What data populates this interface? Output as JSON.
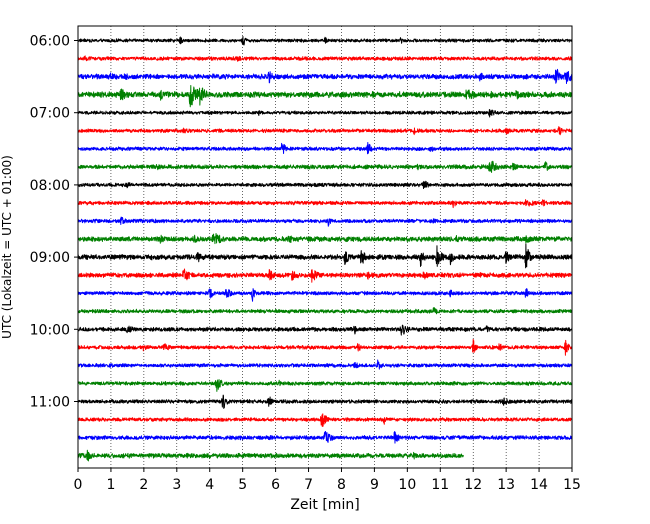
{
  "chart_data": {
    "type": "line",
    "chart_kind": "helicorder (dayplot seismogram, 15-minute rows)",
    "title": "",
    "xlabel": "Zeit  [min]",
    "ylabel": "UTC (Lokalzeit = UTC + 01:00)",
    "xlim": [
      0,
      15
    ],
    "x_ticks": [
      "0",
      "1",
      "2",
      "3",
      "4",
      "5",
      "6",
      "7",
      "8",
      "9",
      "10",
      "11",
      "12",
      "13",
      "14",
      "15"
    ],
    "y_tick_labels": [
      "06:00",
      "07:00",
      "08:00",
      "09:00",
      "10:00",
      "11:00"
    ],
    "grid": "vertical dotted lines at each minute",
    "row_color_cycle": [
      "#000000",
      "#ff0000",
      "#0000ff",
      "#008000"
    ],
    "rows_count": 24,
    "last_row_ends_minute": 11.7,
    "rows": [
      {
        "start": "06:00",
        "color": "black",
        "noise": 0.2,
        "events": [
          [
            3.1,
            0.6,
            0.1
          ],
          [
            5.0,
            0.9,
            0.08
          ],
          [
            7.5,
            0.4,
            0.1
          ],
          [
            9.8,
            0.4,
            0.1
          ]
        ]
      },
      {
        "start": "06:15",
        "color": "red",
        "noise": 0.22,
        "events": [
          [
            0.2,
            0.35,
            0.3
          ],
          [
            4.8,
            0.35,
            0.3
          ]
        ]
      },
      {
        "start": "06:30",
        "color": "blue",
        "noise": 0.3,
        "events": [
          [
            1.0,
            0.6,
            0.25
          ],
          [
            1.4,
            0.5,
            0.2
          ],
          [
            5.8,
            0.9,
            0.12
          ],
          [
            12.2,
            0.5,
            0.2
          ],
          [
            14.5,
            1.3,
            0.12
          ],
          [
            14.8,
            1.0,
            0.2
          ]
        ]
      },
      {
        "start": "06:45",
        "color": "green",
        "noise": 0.35,
        "events": [
          [
            1.3,
            0.8,
            0.2
          ],
          [
            2.5,
            0.7,
            0.3
          ],
          [
            3.4,
            1.5,
            0.25
          ],
          [
            3.7,
            1.2,
            0.2
          ],
          [
            11.8,
            0.9,
            0.25
          ],
          [
            12.5,
            0.5,
            0.3
          ],
          [
            13.3,
            0.6,
            0.2
          ]
        ]
      },
      {
        "start": "07:00",
        "color": "black",
        "noise": 0.2,
        "events": [
          [
            5.5,
            0.5,
            0.1
          ],
          [
            12.5,
            0.5,
            0.2
          ]
        ]
      },
      {
        "start": "07:15",
        "color": "red",
        "noise": 0.22,
        "events": [
          [
            3.2,
            0.4,
            0.2
          ],
          [
            10.2,
            0.5,
            0.15
          ],
          [
            13.0,
            0.6,
            0.12
          ],
          [
            14.6,
            0.8,
            0.08
          ]
        ]
      },
      {
        "start": "07:30",
        "color": "blue",
        "noise": 0.22,
        "events": [
          [
            6.2,
            1.0,
            0.1
          ],
          [
            8.8,
            0.8,
            0.12
          ],
          [
            10.7,
            0.5,
            0.15
          ]
        ]
      },
      {
        "start": "07:45",
        "color": "green",
        "noise": 0.25,
        "events": [
          [
            2.4,
            0.5,
            0.1
          ],
          [
            10.3,
            0.5,
            0.15
          ],
          [
            12.5,
            0.9,
            0.25
          ],
          [
            13.2,
            0.5,
            0.2
          ],
          [
            14.2,
            0.9,
            0.1
          ]
        ]
      },
      {
        "start": "08:00",
        "color": "black",
        "noise": 0.22,
        "events": [
          [
            1.5,
            0.4,
            0.15
          ],
          [
            10.5,
            0.6,
            0.2
          ]
        ]
      },
      {
        "start": "08:15",
        "color": "red",
        "noise": 0.22,
        "events": [
          [
            11.4,
            0.7,
            0.08
          ],
          [
            13.6,
            0.7,
            0.25
          ],
          [
            14.1,
            0.5,
            0.15
          ]
        ]
      },
      {
        "start": "08:30",
        "color": "blue",
        "noise": 0.22,
        "events": [
          [
            1.3,
            0.5,
            0.2
          ],
          [
            7.6,
            0.6,
            0.1
          ],
          [
            10.8,
            0.4,
            0.15
          ]
        ]
      },
      {
        "start": "08:45",
        "color": "green",
        "noise": 0.3,
        "events": [
          [
            2.5,
            0.5,
            0.2
          ],
          [
            3.5,
            0.5,
            0.3
          ],
          [
            4.1,
            0.9,
            0.3
          ],
          [
            6.4,
            0.6,
            0.15
          ],
          [
            11.5,
            0.6,
            0.1
          ],
          [
            13.6,
            0.5,
            0.3
          ]
        ]
      },
      {
        "start": "09:00",
        "color": "black",
        "noise": 0.3,
        "events": [
          [
            2.2,
            0.4,
            0.2
          ],
          [
            3.6,
            0.7,
            0.3
          ],
          [
            8.1,
            0.9,
            0.15
          ],
          [
            8.6,
            1.1,
            0.12
          ],
          [
            10.4,
            1.3,
            0.12
          ],
          [
            10.9,
            1.3,
            0.15
          ],
          [
            11.3,
            1.1,
            0.1
          ],
          [
            13.0,
            1.2,
            0.1
          ],
          [
            13.6,
            1.6,
            0.12
          ]
        ]
      },
      {
        "start": "09:15",
        "color": "red",
        "noise": 0.28,
        "events": [
          [
            3.2,
            0.8,
            0.25
          ],
          [
            5.8,
            0.8,
            0.15
          ],
          [
            6.5,
            0.7,
            0.25
          ],
          [
            7.1,
            0.8,
            0.2
          ],
          [
            8.8,
            0.5,
            0.2
          ],
          [
            10.5,
            0.6,
            0.15
          ]
        ]
      },
      {
        "start": "09:30",
        "color": "blue",
        "noise": 0.22,
        "events": [
          [
            4.0,
            0.8,
            0.1
          ],
          [
            4.5,
            0.6,
            0.2
          ],
          [
            5.3,
            0.9,
            0.08
          ],
          [
            11.3,
            0.5,
            0.1
          ],
          [
            13.6,
            0.9,
            0.08
          ]
        ]
      },
      {
        "start": "09:45",
        "color": "green",
        "noise": 0.22,
        "events": [
          [
            10.8,
            0.5,
            0.15
          ]
        ]
      },
      {
        "start": "10:00",
        "color": "black",
        "noise": 0.25,
        "events": [
          [
            1.5,
            0.5,
            0.25
          ],
          [
            8.4,
            0.7,
            0.1
          ],
          [
            9.8,
            0.8,
            0.25
          ],
          [
            12.4,
            0.5,
            0.1
          ]
        ]
      },
      {
        "start": "10:15",
        "color": "red",
        "noise": 0.22,
        "events": [
          [
            2.0,
            0.6,
            0.1
          ],
          [
            2.6,
            0.5,
            0.25
          ],
          [
            8.5,
            0.6,
            0.1
          ],
          [
            12.0,
            0.9,
            0.08
          ],
          [
            12.8,
            0.6,
            0.1
          ],
          [
            14.8,
            0.9,
            0.1
          ]
        ]
      },
      {
        "start": "10:30",
        "color": "blue",
        "noise": 0.22,
        "events": [
          [
            8.4,
            0.4,
            0.2
          ],
          [
            9.1,
            0.8,
            0.1
          ]
        ]
      },
      {
        "start": "10:45",
        "color": "green",
        "noise": 0.22,
        "events": [
          [
            4.2,
            1.0,
            0.15
          ],
          [
            6.1,
            0.4,
            0.1
          ]
        ]
      },
      {
        "start": "11:00",
        "color": "black",
        "noise": 0.22,
        "events": [
          [
            4.4,
            1.0,
            0.12
          ],
          [
            5.8,
            0.8,
            0.1
          ],
          [
            12.9,
            0.5,
            0.25
          ]
        ]
      },
      {
        "start": "11:15",
        "color": "red",
        "noise": 0.22,
        "events": [
          [
            7.4,
            1.0,
            0.15
          ],
          [
            9.3,
            0.6,
            0.1
          ]
        ]
      },
      {
        "start": "11:30",
        "color": "blue",
        "noise": 0.25,
        "events": [
          [
            7.5,
            0.9,
            0.2
          ],
          [
            9.6,
            0.8,
            0.15
          ]
        ]
      },
      {
        "start": "11:45",
        "color": "green",
        "noise": 0.28,
        "events": [
          [
            0.3,
            1.1,
            0.08
          ],
          [
            10.2,
            0.5,
            0.1
          ]
        ]
      }
    ]
  }
}
